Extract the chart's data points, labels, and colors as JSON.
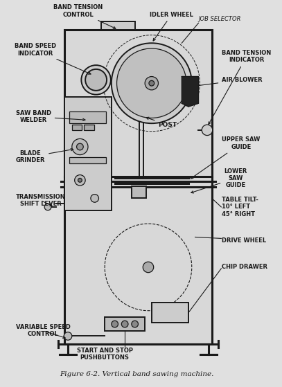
{
  "title": "Figure 6-2. Vertical band sawing machine.",
  "bg_color": "#e8e8e8",
  "line_color": "#1a1a1a",
  "labels": {
    "band_tension_control": "BAND TENSION\nCONTROL",
    "idler_wheel": "IDLER WHEEL",
    "job_selector": "JOB SELECTOR",
    "band_speed_indicator": "BAND SPEED\nINDICATOR",
    "band_tension_indicator": "BAND TENSION\nINDICATOR",
    "air_blower": "AIR BLOWER",
    "saw_band_welder": "SAW BAND\nWELDER",
    "post": "POST",
    "upper_saw_guide": "UPPER SAW\nGUIDE",
    "blade_grinder": "BLADE\nGRINDER",
    "lower_saw_guide": "LOWER\nSAW\nGUIDE",
    "transmission_shift_lever": "TRANSMISSION\nSHIFT LEVER",
    "table_tilt": "TABLE TILT-\n10° LEFT\n45° RIGHT",
    "drive_wheel": "DRIVE WHEEL",
    "chip_drawer": "CHIP DRAWER",
    "variable_speed_control": "VARIABLE SPEED\nCONTROL",
    "start_stop": "START AND STOP\nPUSHBUTTONS"
  }
}
